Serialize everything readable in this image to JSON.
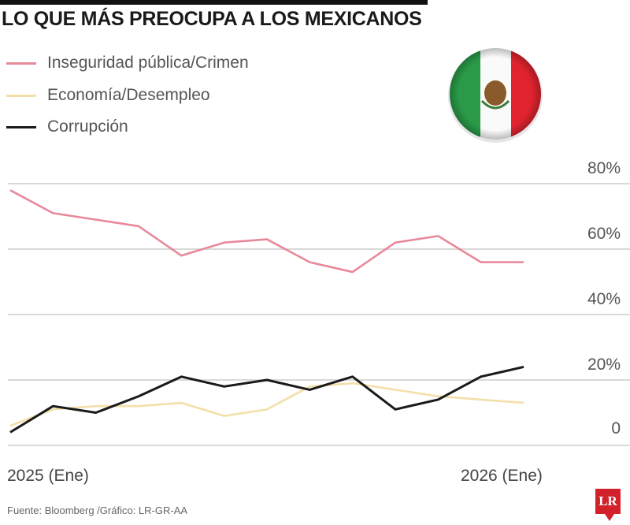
{
  "chart_data": {
    "type": "line",
    "title": "LO QUE MÁS PREOCUPA A LOS MEXICANOS",
    "x": [
      "2025-01",
      "2025-02",
      "2025-03",
      "2025-04",
      "2025-05",
      "2025-06",
      "2025-07",
      "2025-08",
      "2025-09",
      "2025-10",
      "2025-11",
      "2025-12",
      "2026-01"
    ],
    "x_tick_labels": [
      "2025 (Ene)",
      "2026 (Ene)"
    ],
    "y_tick_labels": [
      "0",
      "20%",
      "40%",
      "60%",
      "80%"
    ],
    "y_ticks": [
      0,
      20,
      40,
      60,
      80
    ],
    "ylim": [
      0,
      80
    ],
    "grid": true,
    "legend": "top-left",
    "series": [
      {
        "name": "Inseguridad pública/Crimen",
        "color": "#e8899a",
        "values": [
          78,
          71,
          69,
          67,
          58,
          62,
          63,
          56,
          53,
          62,
          64,
          56,
          56
        ]
      },
      {
        "name": "Economía/Desempleo",
        "color": "#f3dfa9",
        "values": [
          6,
          11,
          12,
          12,
          13,
          9,
          11,
          18,
          19,
          17,
          15,
          14,
          13
        ]
      },
      {
        "name": "Corrupción",
        "color": "#1a1a1a",
        "values": [
          4,
          12,
          10,
          15,
          21,
          18,
          20,
          17,
          21,
          11,
          14,
          21,
          24
        ]
      }
    ]
  },
  "source": "Fuente: Bloomberg /Gráfico: LR-GR-AA",
  "logo_text": "LR",
  "flag_icon": "mexico-flag",
  "colors": {
    "grid": "#d9d9d9",
    "logo": "#d3212b"
  }
}
